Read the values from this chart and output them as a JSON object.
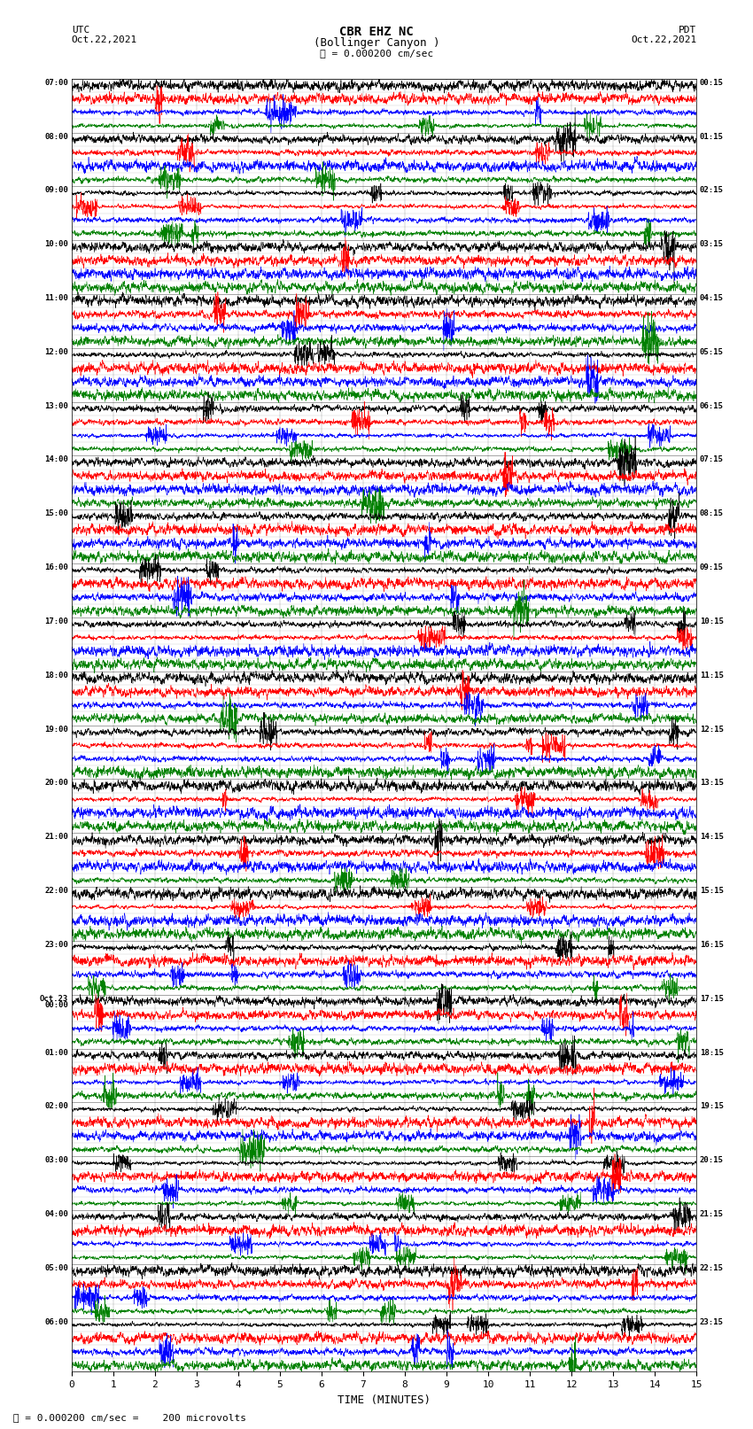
{
  "title_line1": "CBR EHZ NC",
  "title_line2": "(Bollinger Canyon )",
  "scale_label": "= 0.000200 cm/sec",
  "left_header": "UTC",
  "left_date": "Oct.22,2021",
  "right_header": "PDT",
  "right_date": "Oct.22,2021",
  "bottom_label": "TIME (MINUTES)",
  "bottom_note": "= 0.000200 cm/sec =    200 microvolts",
  "xlabel_ticks": [
    0,
    1,
    2,
    3,
    4,
    5,
    6,
    7,
    8,
    9,
    10,
    11,
    12,
    13,
    14,
    15
  ],
  "utc_times": [
    "07:00",
    "08:00",
    "09:00",
    "10:00",
    "11:00",
    "12:00",
    "13:00",
    "14:00",
    "15:00",
    "16:00",
    "17:00",
    "18:00",
    "19:00",
    "20:00",
    "21:00",
    "22:00",
    "23:00",
    "Oct.23\n00:00",
    "01:00",
    "02:00",
    "03:00",
    "04:00",
    "05:00",
    "06:00"
  ],
  "pdt_times": [
    "00:15",
    "01:15",
    "02:15",
    "03:15",
    "04:15",
    "05:15",
    "06:15",
    "07:15",
    "08:15",
    "09:15",
    "10:15",
    "11:15",
    "12:15",
    "13:15",
    "14:15",
    "15:15",
    "16:15",
    "17:15",
    "18:15",
    "19:15",
    "20:15",
    "21:15",
    "22:15",
    "23:15"
  ],
  "colors": [
    "black",
    "red",
    "blue",
    "green"
  ],
  "n_hours": 24,
  "bg_color": "white",
  "hour_amplitudes": [
    3.0,
    2.5,
    2.5,
    2.5,
    1.8,
    1.5,
    1.2,
    1.0,
    0.9,
    0.8,
    0.8,
    0.7,
    1.5,
    1.5,
    1.3,
    1.2,
    3.5,
    4.0,
    4.5,
    3.5,
    5.0,
    5.5,
    5.0,
    4.5,
    2.0,
    3.0,
    2.0,
    1.5,
    0.8,
    1.2,
    1.0,
    0.9,
    0.7,
    0.7,
    0.6,
    0.6,
    0.7,
    0.7,
    0.6,
    0.6,
    0.6,
    0.6,
    0.6,
    0.6,
    0.8,
    0.7,
    0.7,
    0.6,
    1.2,
    0.8,
    0.8,
    0.7,
    0.7,
    0.7,
    0.7,
    0.6,
    0.6,
    0.6,
    0.6,
    0.6,
    0.5,
    0.5,
    0.4,
    0.4,
    0.5,
    0.6,
    0.5,
    0.5,
    0.7,
    0.8,
    0.7,
    0.7,
    0.9,
    0.8,
    0.8,
    0.7,
    1.5,
    1.2,
    1.2,
    1.0,
    2.2,
    2.0,
    1.8,
    1.5,
    2.5,
    2.5,
    2.2,
    1.8,
    1.5,
    1.5,
    1.3,
    1.2,
    0.8,
    0.7,
    0.7,
    0.6
  ]
}
